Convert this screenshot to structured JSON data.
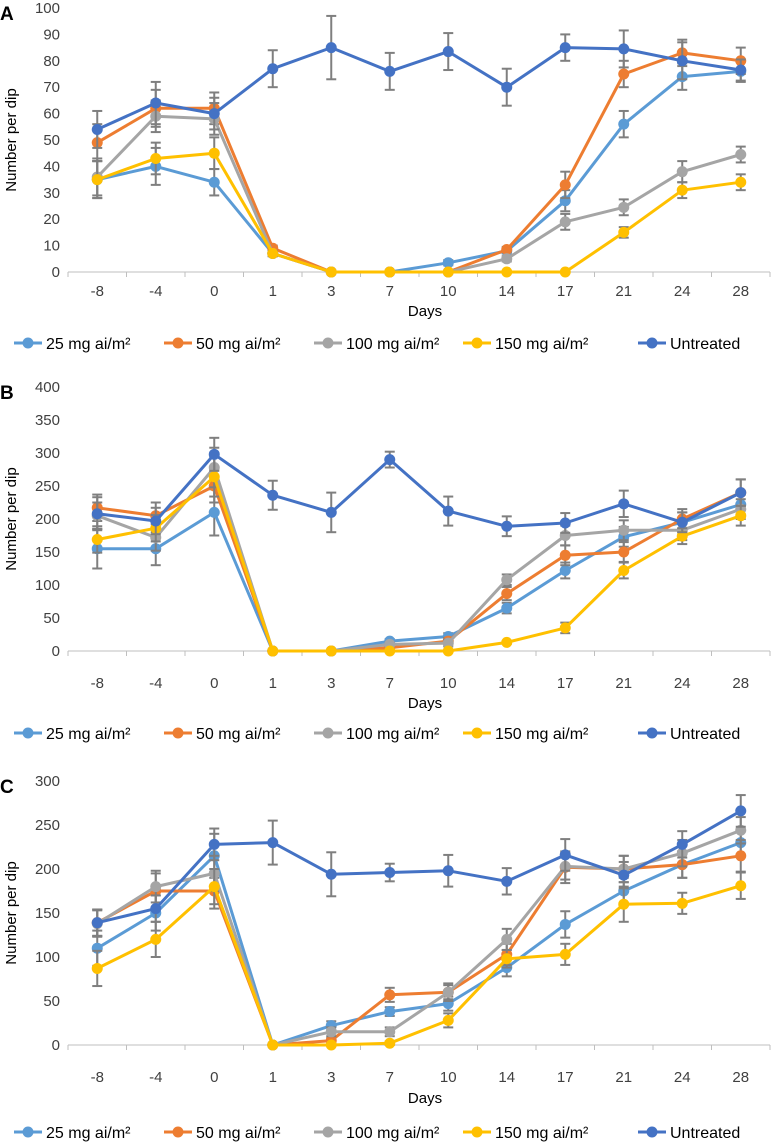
{
  "figure": {
    "ylabel": "Number per dip",
    "xlabel": "Days"
  },
  "series_meta": [
    {
      "name": "25 mg ai/m²",
      "color": "#5B9BD5"
    },
    {
      "name": "50 mg ai/m²",
      "color": "#ED7D31"
    },
    {
      "name": "100 mg ai/m²",
      "color": "#A5A5A5"
    },
    {
      "name": "150 mg ai/m²",
      "color": "#FFC000"
    },
    {
      "name": "Untreated",
      "color": "#4472C4"
    }
  ],
  "error_bar_color": "#7F7F7F",
  "chart_data": [
    {
      "type": "line",
      "panel_label": "A",
      "title": "",
      "xlabel": "Days",
      "ylabel": "Number per dip",
      "categories": [
        "-8",
        "-4",
        "0",
        "1",
        "3",
        "7",
        "10",
        "14",
        "17",
        "21",
        "24",
        "28"
      ],
      "ylim": [
        0,
        100
      ],
      "yticks": [
        0,
        10,
        20,
        30,
        40,
        50,
        60,
        70,
        80,
        90,
        100
      ],
      "legend": "bottom",
      "series": [
        {
          "name": "25 mg ai/m²",
          "values": [
            35,
            40,
            34,
            7,
            0,
            0,
            3.5,
            8,
            27,
            56,
            74,
            76
          ],
          "errors": [
            7,
            7,
            5,
            1,
            0,
            0,
            1,
            1,
            4,
            5,
            5,
            4
          ]
        },
        {
          "name": "50 mg ai/m²",
          "values": [
            49,
            62,
            62,
            9,
            0,
            0,
            0,
            8.5,
            33,
            75,
            83,
            80
          ],
          "errors": [
            7,
            7,
            6,
            1,
            0,
            0,
            0,
            1,
            5,
            5,
            5,
            5
          ]
        },
        {
          "name": "100 mg ai/m²",
          "values": [
            36,
            59,
            58,
            7,
            0,
            0,
            0,
            5,
            19,
            24.5,
            38,
            44.5
          ],
          "errors": [
            7,
            6,
            6,
            1,
            0,
            0,
            0,
            1,
            3,
            3,
            4,
            3
          ]
        },
        {
          "name": "150 mg ai/m²",
          "values": [
            35,
            43,
            45,
            7,
            0,
            0,
            0,
            0,
            0,
            15,
            31,
            34
          ],
          "errors": [
            7,
            6,
            6,
            1,
            0,
            0,
            0,
            0,
            0,
            2,
            3,
            3
          ]
        },
        {
          "name": "Untreated",
          "values": [
            54,
            64,
            60,
            77,
            85,
            76,
            83.5,
            70,
            85,
            84.5,
            80,
            76.5
          ],
          "errors": [
            7,
            8,
            6,
            7,
            12,
            7,
            7,
            7,
            5,
            7,
            7,
            4
          ]
        }
      ]
    },
    {
      "type": "line",
      "panel_label": "B",
      "title": "",
      "xlabel": "Days",
      "ylabel": "Number per dip",
      "categories": [
        "-8",
        "-4",
        "0",
        "1",
        "3",
        "7",
        "10",
        "14",
        "17",
        "21",
        "24",
        "28"
      ],
      "ylim": [
        0,
        400
      ],
      "yticks": [
        0,
        50,
        100,
        150,
        200,
        250,
        300,
        350,
        400
      ],
      "legend": "bottom",
      "series": [
        {
          "name": "25 mg ai/m²",
          "values": [
            155,
            155,
            210,
            0,
            0,
            15,
            22,
            65,
            122,
            173,
            195,
            222
          ],
          "errors": [
            30,
            25,
            35,
            0,
            0,
            3,
            5,
            8,
            12,
            15,
            15,
            15
          ]
        },
        {
          "name": "50 mg ai/m²",
          "values": [
            217,
            205,
            250,
            0,
            0,
            5,
            15,
            87,
            145,
            150,
            200,
            240
          ],
          "errors": [
            20,
            20,
            25,
            0,
            0,
            3,
            5,
            10,
            15,
            15,
            15,
            20
          ]
        },
        {
          "name": "100 mg ai/m²",
          "values": [
            205,
            172,
            278,
            0,
            0,
            10,
            12,
            108,
            175,
            183,
            183,
            215
          ],
          "errors": [
            20,
            20,
            30,
            0,
            0,
            3,
            5,
            8,
            15,
            15,
            15,
            15
          ]
        },
        {
          "name": "150 mg ai/m²",
          "values": [
            169,
            186,
            264,
            0,
            0,
            0,
            0,
            13,
            35,
            122,
            174,
            205
          ],
          "errors": [
            20,
            20,
            30,
            0,
            0,
            0,
            0,
            2,
            8,
            12,
            12,
            15
          ]
        },
        {
          "name": "Untreated",
          "values": [
            208,
            197,
            298,
            236,
            210,
            290,
            212,
            189,
            194,
            223,
            195,
            240
          ],
          "errors": [
            25,
            20,
            25,
            22,
            30,
            12,
            22,
            15,
            15,
            20,
            15,
            20
          ]
        }
      ]
    },
    {
      "type": "line",
      "panel_label": "C",
      "title": "",
      "xlabel": "Days",
      "ylabel": "Number per dip",
      "categories": [
        "-8",
        "-4",
        "0",
        "1",
        "3",
        "7",
        "10",
        "14",
        "17",
        "21",
        "24",
        "28"
      ],
      "ylim": [
        0,
        300
      ],
      "yticks": [
        0,
        50,
        100,
        150,
        200,
        250,
        300
      ],
      "legend": "bottom",
      "series": [
        {
          "name": "25 mg ai/m²",
          "values": [
            110,
            150,
            215,
            0,
            22,
            38,
            47,
            88,
            137,
            175,
            205,
            230
          ],
          "errors": [
            20,
            20,
            25,
            0,
            5,
            5,
            8,
            10,
            15,
            15,
            15,
            15
          ]
        },
        {
          "name": "50 mg ai/m²",
          "values": [
            139,
            175,
            175,
            0,
            5,
            57,
            60,
            103,
            202,
            200,
            205,
            215
          ],
          "errors": [
            15,
            20,
            20,
            0,
            3,
            8,
            8,
            12,
            18,
            15,
            15,
            18
          ]
        },
        {
          "name": "100 mg ai/m²",
          "values": [
            138,
            180,
            195,
            0,
            15,
            15,
            60,
            120,
            203,
            200,
            218,
            244
          ],
          "errors": [
            15,
            18,
            20,
            0,
            5,
            5,
            10,
            12,
            15,
            15,
            15,
            15
          ]
        },
        {
          "name": "150 mg ai/m²",
          "values": [
            87,
            120,
            180,
            0,
            0,
            2,
            28,
            98,
            103,
            160,
            161,
            181
          ],
          "errors": [
            20,
            20,
            20,
            0,
            0,
            2,
            8,
            10,
            12,
            20,
            12,
            15
          ]
        },
        {
          "name": "Untreated",
          "values": [
            139,
            155,
            228,
            230,
            194,
            196,
            198,
            186,
            216,
            193,
            228,
            266
          ],
          "errors": [
            15,
            15,
            18,
            25,
            25,
            10,
            18,
            15,
            18,
            15,
            15,
            18
          ]
        }
      ]
    }
  ]
}
